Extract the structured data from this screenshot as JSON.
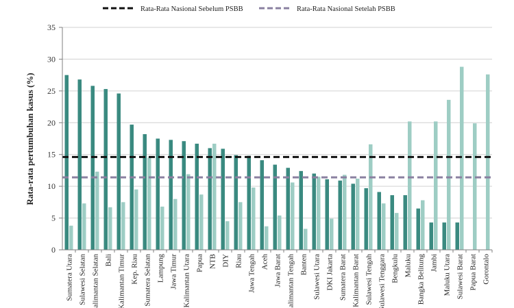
{
  "chart_data": {
    "type": "bar",
    "title": "",
    "xlabel": "",
    "ylabel": "Rata-rata pertumbuhan kasus (%)",
    "ylim": [
      0,
      35
    ],
    "yticks": [
      0,
      5,
      10,
      15,
      20,
      25,
      30,
      35
    ],
    "grid": true,
    "legend_position": "top",
    "categories": [
      "Sumatera Utara",
      "Sulawesi Selatan",
      "Kalimantan Selatan",
      "Bali",
      "Kalimantan Timur",
      "Kep. Riau",
      "Sumatera Selatan",
      "Lampung",
      "Jawa Timur",
      "Kalimantan Utara",
      "Papua",
      "NTB",
      "DIY",
      "Riau",
      "Jawa Tengah",
      "Aceh",
      "Jawa Barat",
      "Kalimantan Tengah",
      "Banten",
      "Sulawesi Utara",
      "DKI Jakarta",
      "Sumatera Barat",
      "Kalimantan Barat",
      "Sulawesi Tengah",
      "Sulawesi Tenggara",
      "Bengkulu",
      "Maluku",
      "Bangka Belitung",
      "Jambi",
      "Maluku Utara",
      "Sulawesi Barat",
      "Papua Barat",
      "Gorontalo"
    ],
    "series": [
      {
        "color": "#3a8a80",
        "values": [
          27.5,
          26.8,
          25.8,
          25.3,
          24.6,
          19.7,
          18.2,
          17.5,
          17.3,
          17.1,
          16.7,
          16.0,
          15.9,
          14.9,
          14.8,
          14.1,
          13.4,
          12.9,
          12.4,
          12.0,
          11.1,
          10.9,
          10.4,
          9.7,
          9.1,
          8.6,
          8.6,
          6.5,
          4.3,
          4.3,
          4.3,
          0,
          0
        ]
      },
      {
        "color": "#9ecdc4",
        "values": [
          3.8,
          7.3,
          12.3,
          6.7,
          7.5,
          9.5,
          14.5,
          6.8,
          8.0,
          11.9,
          8.7,
          16.7,
          4.5,
          7.5,
          9.8,
          3.7,
          5.4,
          10.6,
          3.3,
          11.5,
          4.9,
          11.8,
          11.2,
          16.6,
          7.3,
          5.8,
          20.2,
          7.8,
          20.2,
          23.6,
          28.8,
          19.9,
          27.6
        ]
      }
    ],
    "reference_lines": [
      {
        "name": "Rata-Rata Nasional Sebelum PSBB",
        "value": 14.6,
        "color": "#111111",
        "style": "dashed"
      },
      {
        "name": "Rata-Rata Nasional Setelah PSBB",
        "value": 11.4,
        "color": "#8a80a0",
        "style": "dashed"
      }
    ],
    "colors": {
      "axis": "#7f7f7f",
      "grid": "#d0d0d0"
    }
  }
}
